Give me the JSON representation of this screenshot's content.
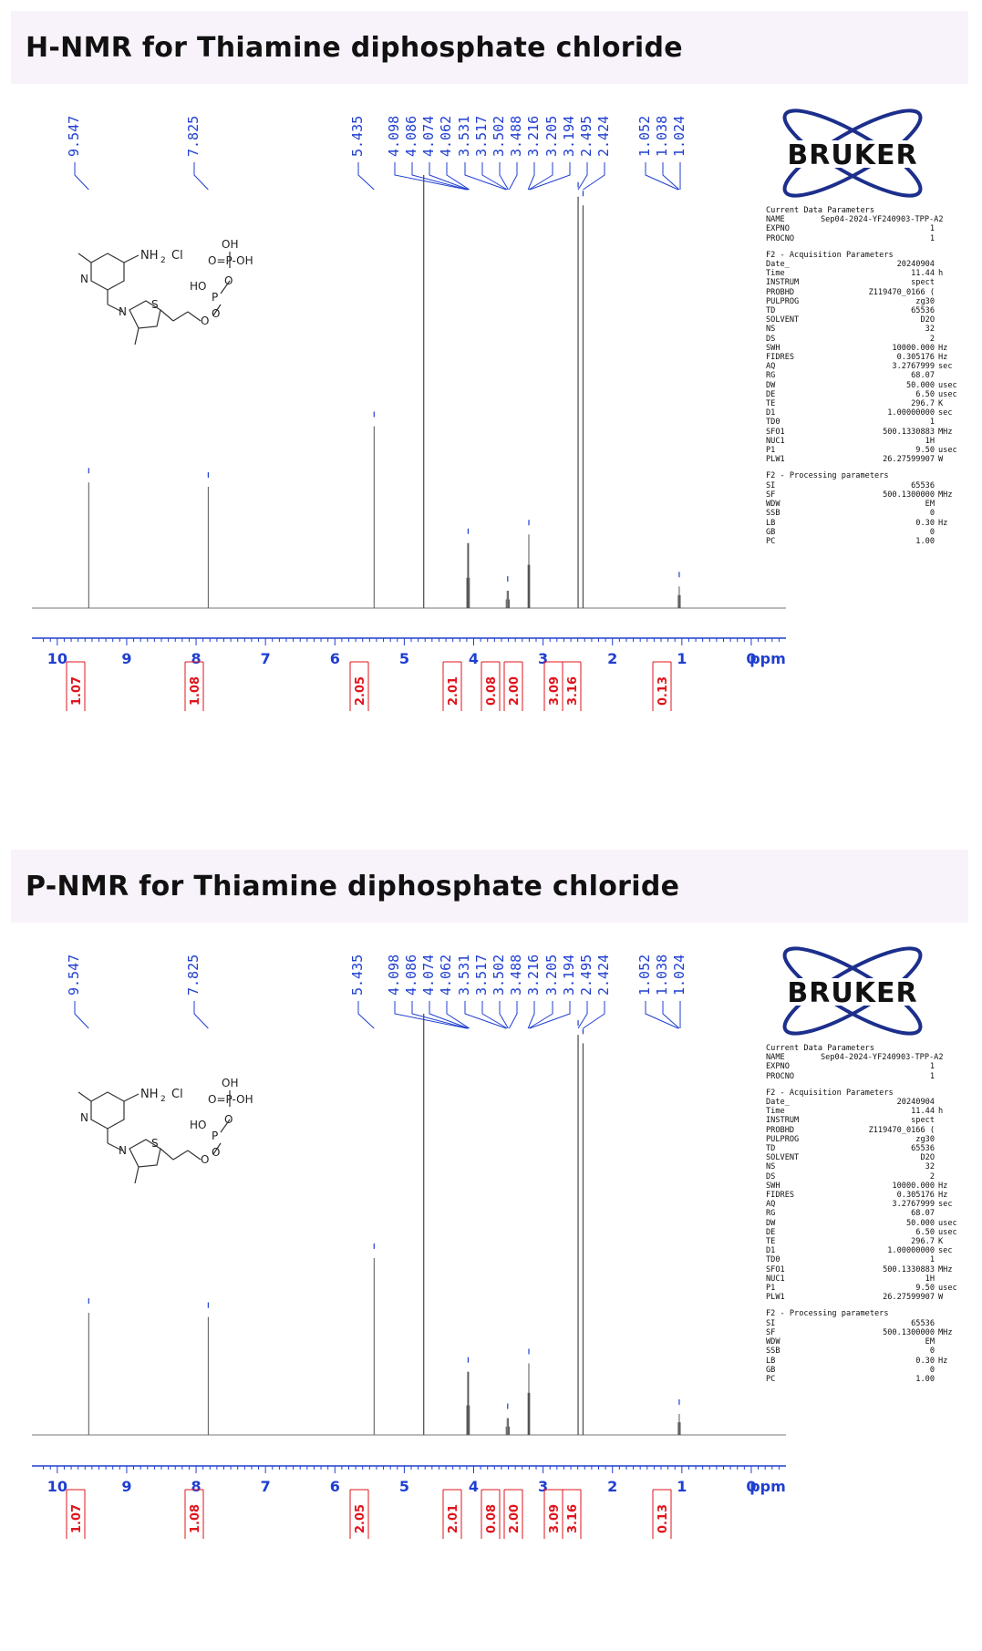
{
  "sections": [
    {
      "title": "H-NMR for Thiamine diphosphate chloride",
      "panel_key": "h"
    },
    {
      "title": "P-NMR for Thiamine diphosphate chloride",
      "panel_key": "p"
    }
  ],
  "structure_labels": {
    "nh2": "NH",
    "nh2_sub": "2",
    "cl": "Cl",
    "n": "N",
    "n_plus": "N",
    "s": "S",
    "oh_top": "OH",
    "op_oh": "O=P-OH",
    "ho": "HO",
    "p": "P",
    "o_bottom": "O",
    "o_link": "O",
    "o_link2": "O"
  },
  "bruker": {
    "name": "BRUKER",
    "params": [
      {
        "heading": "Current Data Parameters",
        "rows": [
          {
            "name": "NAME",
            "value": "Sep04-2024-YF240903-TPP-A2",
            "unit": ""
          },
          {
            "name": "EXPNO",
            "value": "1",
            "unit": ""
          },
          {
            "name": "PROCNO",
            "value": "1",
            "unit": ""
          }
        ]
      },
      {
        "heading": "F2 - Acquisition Parameters",
        "rows": [
          {
            "name": "Date_",
            "value": "20240904",
            "unit": ""
          },
          {
            "name": "Time",
            "value": "11.44",
            "unit": "h"
          },
          {
            "name": "INSTRUM",
            "value": "spect",
            "unit": ""
          },
          {
            "name": "PROBHD",
            "value": "Z119470_0166 (",
            "unit": ""
          },
          {
            "name": "PULPROG",
            "value": "zg30",
            "unit": ""
          },
          {
            "name": "TD",
            "value": "65536",
            "unit": ""
          },
          {
            "name": "SOLVENT",
            "value": "D2O",
            "unit": ""
          },
          {
            "name": "NS",
            "value": "32",
            "unit": ""
          },
          {
            "name": "DS",
            "value": "2",
            "unit": ""
          },
          {
            "name": "SWH",
            "value": "10000.000",
            "unit": "Hz"
          },
          {
            "name": "FIDRES",
            "value": "0.305176",
            "unit": "Hz"
          },
          {
            "name": "AQ",
            "value": "3.2767999",
            "unit": "sec"
          },
          {
            "name": "RG",
            "value": "68.07",
            "unit": ""
          },
          {
            "name": "DW",
            "value": "50.000",
            "unit": "usec"
          },
          {
            "name": "DE",
            "value": "6.50",
            "unit": "usec"
          },
          {
            "name": "TE",
            "value": "296.7",
            "unit": "K"
          },
          {
            "name": "D1",
            "value": "1.00000000",
            "unit": "sec"
          },
          {
            "name": "TD0",
            "value": "1",
            "unit": ""
          },
          {
            "name": "SFO1",
            "value": "500.1330883",
            "unit": "MHz"
          },
          {
            "name": "NUC1",
            "value": "1H",
            "unit": ""
          },
          {
            "name": "P1",
            "value": "9.50",
            "unit": "usec"
          },
          {
            "name": "PLW1",
            "value": "26.27599907",
            "unit": "W"
          }
        ]
      },
      {
        "heading": "F2 - Processing parameters",
        "rows": [
          {
            "name": "SI",
            "value": "65536",
            "unit": ""
          },
          {
            "name": "SF",
            "value": "500.1300000",
            "unit": "MHz"
          },
          {
            "name": "WDW",
            "value": "EM",
            "unit": ""
          },
          {
            "name": "SSB",
            "value": "0",
            "unit": ""
          },
          {
            "name": "LB",
            "value": "0.30",
            "unit": "Hz"
          },
          {
            "name": "GB",
            "value": "0",
            "unit": ""
          },
          {
            "name": "PC",
            "value": "1.00",
            "unit": ""
          }
        ]
      }
    ]
  },
  "colors": {
    "peak_label": "#1f3fd0",
    "integral": "#e0141c",
    "axis": "#1f3fd0",
    "spectrum": "#555555",
    "header_bg": "#f8f2fa",
    "bruker_blue": "#1c2f8c"
  },
  "chart_data": [
    {
      "type": "line",
      "title": "H-NMR for Thiamine diphosphate chloride",
      "xlabel": "ppm",
      "xlim": [
        10.3,
        -0.5
      ],
      "x_reversed": true,
      "ticks": [
        "10",
        "9",
        "8",
        "7",
        "6",
        "5",
        "4",
        "3",
        "2",
        "1",
        "0"
      ],
      "tick_values": [
        10,
        9,
        8,
        7,
        6,
        5,
        4,
        3,
        2,
        1,
        0
      ],
      "peak_labels": [
        "9.547",
        "7.825",
        "5.435",
        "4.098",
        "4.086",
        "4.074",
        "4.062",
        "3.531",
        "3.517",
        "3.502",
        "3.488",
        "3.216",
        "3.205",
        "3.194",
        "2.495",
        "2.424",
        "1.052",
        "1.038",
        "1.024"
      ],
      "peaks": [
        {
          "ppm": 9.547,
          "height": 0.29
        },
        {
          "ppm": 7.825,
          "height": 0.28
        },
        {
          "ppm": 5.435,
          "height": 0.42
        },
        {
          "ppm": 4.72,
          "height": 1.0
        },
        {
          "ppm": 4.098,
          "height": 0.07
        },
        {
          "ppm": 4.086,
          "height": 0.15
        },
        {
          "ppm": 4.074,
          "height": 0.15
        },
        {
          "ppm": 4.062,
          "height": 0.07
        },
        {
          "ppm": 3.531,
          "height": 0.02
        },
        {
          "ppm": 3.517,
          "height": 0.04
        },
        {
          "ppm": 3.502,
          "height": 0.04
        },
        {
          "ppm": 3.488,
          "height": 0.02
        },
        {
          "ppm": 3.216,
          "height": 0.1
        },
        {
          "ppm": 3.205,
          "height": 0.17
        },
        {
          "ppm": 3.194,
          "height": 0.1
        },
        {
          "ppm": 2.495,
          "height": 0.95
        },
        {
          "ppm": 2.424,
          "height": 0.93
        },
        {
          "ppm": 1.052,
          "height": 0.03
        },
        {
          "ppm": 1.038,
          "height": 0.05
        },
        {
          "ppm": 1.024,
          "height": 0.03
        }
      ],
      "integrals": [
        {
          "ppm": 9.547,
          "label": "1.07"
        },
        {
          "ppm": 7.825,
          "label": "1.08"
        },
        {
          "ppm": 5.435,
          "label": "2.05"
        },
        {
          "ppm": 4.08,
          "label": "2.01"
        },
        {
          "ppm": 3.51,
          "label": "0.08"
        },
        {
          "ppm": 3.205,
          "label": "2.00"
        },
        {
          "ppm": 2.5,
          "label": "3.09"
        },
        {
          "ppm": 2.42,
          "label": "3.16"
        },
        {
          "ppm": 1.038,
          "label": "0.13"
        }
      ]
    },
    {
      "type": "line",
      "title": "P-NMR for Thiamine diphosphate chloride",
      "xlabel": "ppm",
      "xlim": [
        10.3,
        -0.5
      ],
      "x_reversed": true,
      "ticks": [
        "10",
        "9",
        "8",
        "7",
        "6",
        "5",
        "4",
        "3",
        "2",
        "1",
        "0"
      ],
      "tick_values": [
        10,
        9,
        8,
        7,
        6,
        5,
        4,
        3,
        2,
        1,
        0
      ],
      "peak_labels": [
        "9.547",
        "7.825",
        "5.435",
        "4.098",
        "4.086",
        "4.074",
        "4.062",
        "3.531",
        "3.517",
        "3.502",
        "3.488",
        "3.216",
        "3.205",
        "3.194",
        "2.495",
        "2.424",
        "1.052",
        "1.038",
        "1.024"
      ],
      "peaks": [
        {
          "ppm": 9.547,
          "height": 0.29
        },
        {
          "ppm": 7.825,
          "height": 0.28
        },
        {
          "ppm": 5.435,
          "height": 0.42
        },
        {
          "ppm": 4.72,
          "height": 1.0
        },
        {
          "ppm": 4.098,
          "height": 0.07
        },
        {
          "ppm": 4.086,
          "height": 0.15
        },
        {
          "ppm": 4.074,
          "height": 0.15
        },
        {
          "ppm": 4.062,
          "height": 0.07
        },
        {
          "ppm": 3.531,
          "height": 0.02
        },
        {
          "ppm": 3.517,
          "height": 0.04
        },
        {
          "ppm": 3.502,
          "height": 0.04
        },
        {
          "ppm": 3.488,
          "height": 0.02
        },
        {
          "ppm": 3.216,
          "height": 0.1
        },
        {
          "ppm": 3.205,
          "height": 0.17
        },
        {
          "ppm": 3.194,
          "height": 0.1
        },
        {
          "ppm": 2.495,
          "height": 0.95
        },
        {
          "ppm": 2.424,
          "height": 0.93
        },
        {
          "ppm": 1.052,
          "height": 0.03
        },
        {
          "ppm": 1.038,
          "height": 0.05
        },
        {
          "ppm": 1.024,
          "height": 0.03
        }
      ],
      "integrals": [
        {
          "ppm": 9.547,
          "label": "1.07"
        },
        {
          "ppm": 7.825,
          "label": "1.08"
        },
        {
          "ppm": 5.435,
          "label": "2.05"
        },
        {
          "ppm": 4.08,
          "label": "2.01"
        },
        {
          "ppm": 3.51,
          "label": "0.08"
        },
        {
          "ppm": 3.205,
          "label": "2.00"
        },
        {
          "ppm": 2.5,
          "label": "3.09"
        },
        {
          "ppm": 2.42,
          "label": "3.16"
        },
        {
          "ppm": 1.038,
          "label": "0.13"
        }
      ]
    }
  ]
}
